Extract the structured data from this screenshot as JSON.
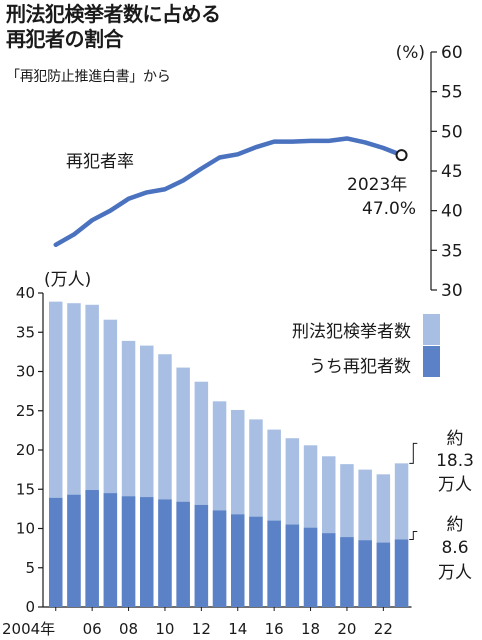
{
  "title_lines": [
    "刑法犯検挙者数に占める",
    "再犯者の割合"
  ],
  "source": "「再犯防止推進白書」から",
  "colors": {
    "total_bar": "#a8bfe3",
    "repeat_bar": "#5b82c6",
    "line": "#4a72bf",
    "text": "#1a1a1a"
  },
  "chart_data": [
    {
      "type": "line",
      "series_label": "再犯者率",
      "y_unit": "(%)",
      "y_ticks": [
        "60",
        "55",
        "50",
        "45",
        "40",
        "35",
        "30"
      ],
      "ylim": [
        30,
        60
      ],
      "y_axis_side": "right",
      "x": [
        2004,
        2005,
        2006,
        2007,
        2008,
        2009,
        2010,
        2011,
        2012,
        2013,
        2014,
        2015,
        2016,
        2017,
        2018,
        2019,
        2020,
        2021,
        2022,
        2023
      ],
      "values": [
        35.7,
        37.0,
        38.8,
        40.0,
        41.5,
        42.3,
        42.7,
        43.8,
        45.3,
        46.7,
        47.1,
        48.0,
        48.7,
        48.7,
        48.8,
        48.8,
        49.1,
        48.6,
        47.9,
        47.0
      ],
      "annotation": {
        "year_text": "2023年",
        "value_text": "47.0%"
      }
    },
    {
      "type": "bar",
      "y_unit": "(万人)",
      "y_ticks": [
        "40",
        "35",
        "30",
        "25",
        "20",
        "15",
        "10",
        "5",
        "0"
      ],
      "ylim": [
        0,
        40
      ],
      "x_ticks": [
        "2004年",
        "06",
        "08",
        "10",
        "12",
        "14",
        "16",
        "18",
        "20",
        "22"
      ],
      "categories": [
        2004,
        2005,
        2006,
        2007,
        2008,
        2009,
        2010,
        2011,
        2012,
        2013,
        2014,
        2015,
        2016,
        2017,
        2018,
        2019,
        2020,
        2021,
        2022,
        2023
      ],
      "series": [
        {
          "name": "刑法犯検挙者数",
          "values": [
            38.9,
            38.7,
            38.5,
            36.6,
            33.9,
            33.3,
            32.2,
            30.5,
            28.7,
            26.2,
            25.1,
            23.9,
            22.6,
            21.5,
            20.6,
            19.2,
            18.2,
            17.5,
            16.9,
            18.3
          ]
        },
        {
          "name": "うち再犯者数",
          "values": [
            13.9,
            14.3,
            14.9,
            14.5,
            14.1,
            14.0,
            13.7,
            13.4,
            13.0,
            12.3,
            11.8,
            11.5,
            11.0,
            10.5,
            10.1,
            9.4,
            8.9,
            8.5,
            8.2,
            8.6
          ]
        }
      ],
      "annotations": {
        "total_text": [
          "約",
          "18.3",
          "万人"
        ],
        "repeat_text": [
          "約",
          "8.6",
          "万人"
        ]
      }
    }
  ]
}
